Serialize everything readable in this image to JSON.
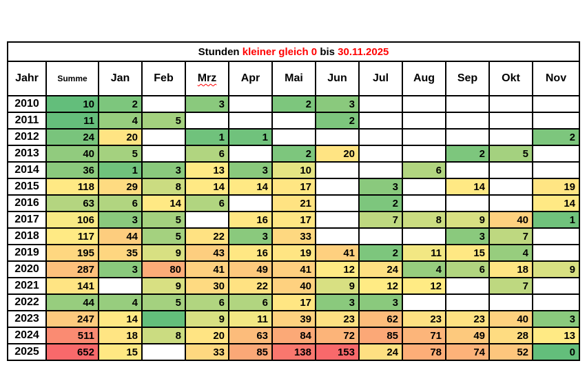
{
  "title": {
    "segments": [
      {
        "text": "Stunden ",
        "color": "#000000"
      },
      {
        "text": "kleiner gleich  0 ",
        "color": "#FF0000"
      },
      {
        "text": " bis ",
        "color": "#000000"
      },
      {
        "text": "  30.11.2025",
        "color": "#FF0000"
      }
    ],
    "full_text": "Stunden kleiner gleich  0  bis  30.11.2025"
  },
  "table": {
    "column_headers": [
      "Jahr",
      "Summe",
      "Jan",
      "Feb",
      "Mrz",
      "Apr",
      "Mai",
      "Jun",
      "Jul",
      "Aug",
      "Sep",
      "Okt",
      "Nov"
    ],
    "misspelled_header": "Mrz"
  },
  "colors": {
    "scale_min_green": "#63BE7B",
    "scale_mid_yellow": "#FFEB84",
    "scale_max_red": "#F8696B",
    "title_red": "#FF0000",
    "border_black": "#000000",
    "empty_cell_white": "#FFFFFF"
  },
  "chart_data": {
    "type": "heatmap",
    "title": "Stunden kleiner gleich 0 bis 30.11.2025",
    "columns": [
      "Summe",
      "Jan",
      "Feb",
      "Mrz",
      "Apr",
      "Mai",
      "Jun",
      "Jul",
      "Aug",
      "Sep",
      "Okt",
      "Nov"
    ],
    "legend_position": "none",
    "color_scale": "3-color scale: green #63BE7B at min, yellow #FFEB84 at median, red #F8696B at max; Summe column scaled separately from the month columns; null = empty white cell",
    "rows": [
      {
        "year": "2010",
        "summe": 10,
        "months": [
          2,
          null,
          3,
          null,
          2,
          3,
          null,
          null,
          null,
          null,
          null
        ]
      },
      {
        "year": "2011",
        "summe": 11,
        "months": [
          4,
          5,
          null,
          null,
          null,
          2,
          null,
          null,
          null,
          null,
          null
        ]
      },
      {
        "year": "2012",
        "summe": 24,
        "months": [
          20,
          null,
          1,
          1,
          null,
          null,
          null,
          null,
          null,
          null,
          2
        ]
      },
      {
        "year": "2013",
        "summe": 40,
        "months": [
          5,
          null,
          6,
          null,
          2,
          20,
          null,
          null,
          2,
          5,
          null
        ]
      },
      {
        "year": "2014",
        "summe": 36,
        "months": [
          1,
          3,
          13,
          3,
          10,
          null,
          null,
          6,
          null,
          null,
          null
        ]
      },
      {
        "year": "2015",
        "summe": 118,
        "months": [
          29,
          8,
          14,
          14,
          17,
          null,
          3,
          null,
          14,
          null,
          19
        ]
      },
      {
        "year": "2016",
        "summe": 63,
        "months": [
          6,
          14,
          6,
          null,
          21,
          null,
          2,
          null,
          null,
          null,
          14
        ]
      },
      {
        "year": "2017",
        "summe": 106,
        "months": [
          3,
          5,
          null,
          16,
          17,
          null,
          7,
          8,
          9,
          40,
          1
        ]
      },
      {
        "year": "2018",
        "summe": 117,
        "months": [
          44,
          5,
          22,
          3,
          33,
          null,
          null,
          null,
          3,
          7,
          null
        ]
      },
      {
        "year": "2019",
        "summe": 195,
        "months": [
          35,
          9,
          43,
          16,
          19,
          41,
          2,
          11,
          15,
          4,
          null
        ]
      },
      {
        "year": "2020",
        "summe": 287,
        "months": [
          3,
          80,
          41,
          49,
          41,
          12,
          24,
          4,
          6,
          18,
          9
        ]
      },
      {
        "year": "2021",
        "summe": 141,
        "months": [
          null,
          9,
          30,
          22,
          40,
          9,
          12,
          12,
          null,
          7,
          null
        ]
      },
      {
        "year": "2022",
        "summe": 44,
        "months": [
          4,
          5,
          6,
          6,
          17,
          3,
          3,
          null,
          null,
          null,
          null
        ]
      },
      {
        "year": "2023",
        "summe": 247,
        "months": [
          14,
          {
            "v": 0,
            "hidden": true
          },
          9,
          11,
          39,
          23,
          62,
          23,
          23,
          40,
          3
        ]
      },
      {
        "year": "2024",
        "summe": 511,
        "months": [
          18,
          8,
          20,
          63,
          84,
          72,
          85,
          71,
          49,
          28,
          13
        ]
      },
      {
        "year": "2025",
        "summe": 652,
        "months": [
          15,
          null,
          33,
          85,
          138,
          153,
          24,
          78,
          74,
          52,
          0
        ]
      }
    ]
  }
}
